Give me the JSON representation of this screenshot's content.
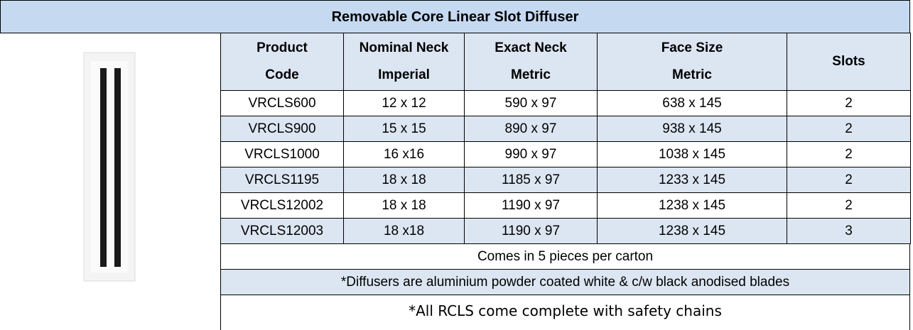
{
  "table": {
    "title": "Removable Core Linear Slot Diffuser",
    "headers": [
      [
        "Product",
        "Code"
      ],
      [
        "Nominal Neck",
        "Imperial"
      ],
      [
        "Exact Neck",
        "Metric"
      ],
      [
        "Face Size",
        "Metric"
      ],
      [
        "Slots"
      ]
    ],
    "rows": [
      [
        "VRCLS600",
        "12 x 12",
        "590 x 97",
        "638 x 145",
        "2"
      ],
      [
        "VRCLS900",
        "15 x 15",
        "890 x 97",
        "938 x 145",
        "2"
      ],
      [
        "VRCLS1000",
        "16 x16",
        "990 x 97",
        "1038 x 145",
        "2"
      ],
      [
        "VRCLS1195",
        "18 x 18",
        "1185 x 97",
        "1233 x 145",
        "2"
      ],
      [
        "VRCLS12002",
        "18 x 18",
        "1190 x 97",
        "1238 x 145",
        "2"
      ],
      [
        "VRCLS12003",
        "18 x18",
        "1190 x 97",
        "1238 x 145",
        "3"
      ]
    ],
    "notes": [
      "Comes in 5 pieces per carton",
      "*Diffusers are aluminium powder coated white & c/w black anodised blades",
      "*All RCLS come complete with safety chains"
    ]
  }
}
